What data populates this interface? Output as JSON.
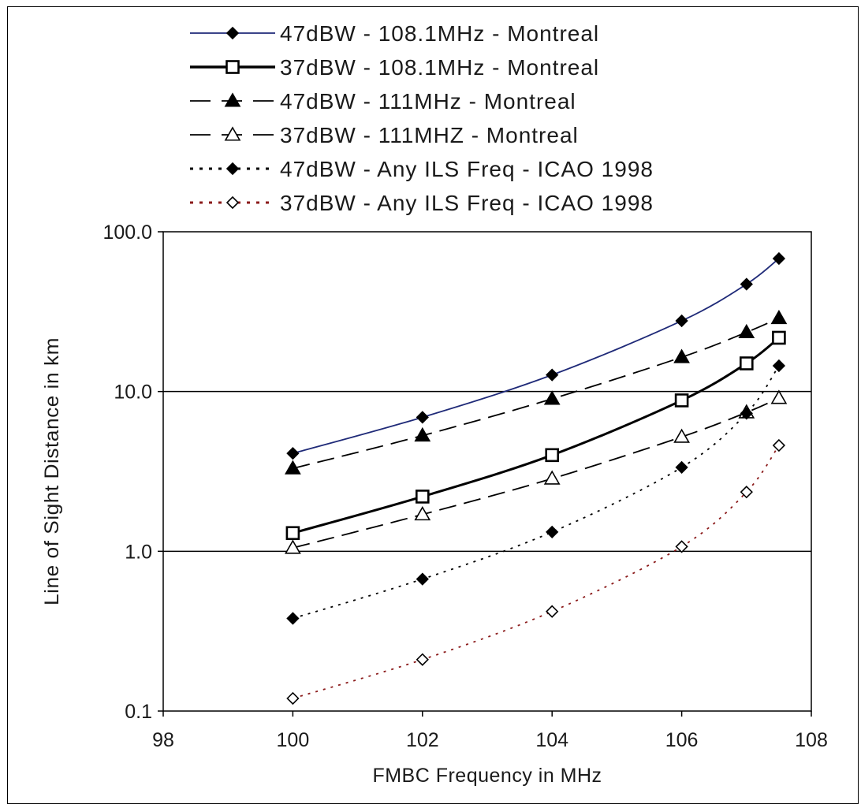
{
  "chart_data": {
    "type": "line",
    "title": "",
    "xlabel": "FMBC Frequency in MHz",
    "ylabel": "Line of Sight Distance in km",
    "xlim": [
      98,
      108
    ],
    "ylim": [
      0.1,
      100
    ],
    "yscale": "log",
    "x_ticks": [
      98,
      100,
      102,
      104,
      106,
      108
    ],
    "x_tick_labels": [
      "98",
      "100",
      "102",
      "104",
      "106",
      "108"
    ],
    "y_ticks": [
      0.1,
      1,
      10,
      100
    ],
    "y_tick_labels": [
      "0.1",
      "1.0",
      "10.0",
      "100.0"
    ],
    "grid": "horizontal major lines",
    "legend_position": "top",
    "series": [
      {
        "name": "47dBW - 108.1MHz - Montreal",
        "color": "#1f2a78",
        "dash": "solid",
        "line_weight": "thin",
        "marker": "diamond-filled",
        "x": [
          100,
          102,
          104,
          106,
          107,
          107.5
        ],
        "y": [
          4.1,
          6.9,
          12.7,
          27.7,
          47,
          68
        ]
      },
      {
        "name": "37dBW - 108.1MHz - Montreal",
        "color": "#000000",
        "dash": "solid",
        "line_weight": "medium",
        "marker": "square-open",
        "x": [
          100,
          102,
          104,
          106,
          107,
          107.5
        ],
        "y": [
          1.3,
          2.2,
          4.0,
          8.8,
          15.0,
          21.7
        ]
      },
      {
        "name": "47dBW - 111MHz - Montreal",
        "color": "#000000",
        "dash": "long-dash",
        "line_weight": "thin",
        "marker": "triangle-filled",
        "x": [
          100,
          102,
          104,
          106,
          107,
          107.5
        ],
        "y": [
          3.3,
          5.3,
          9.0,
          16.4,
          23.5,
          28.8
        ]
      },
      {
        "name": "37dBW - 111MHZ - Montreal",
        "color": "#000000",
        "dash": "long-dash",
        "line_weight": "thin",
        "marker": "triangle-open",
        "x": [
          100,
          102,
          104,
          106,
          107,
          107.5
        ],
        "y": [
          1.05,
          1.7,
          2.85,
          5.2,
          7.4,
          9.1
        ]
      },
      {
        "name": "47dBW - Any ILS Freq - ICAO 1998",
        "color": "#000000",
        "dash": "dotted",
        "line_weight": "thin",
        "marker": "diamond-filled",
        "x": [
          100,
          102,
          104,
          106,
          107,
          107.5
        ],
        "y": [
          0.38,
          0.67,
          1.32,
          3.35,
          7.3,
          14.5
        ]
      },
      {
        "name": "37dBW - Any ILS Freq - ICAO 1998",
        "color": "#8b1a1a",
        "dash": "dotted",
        "line_weight": "thin",
        "marker": "diamond-open",
        "x": [
          100,
          102,
          104,
          106,
          107,
          107.5
        ],
        "y": [
          0.12,
          0.21,
          0.42,
          1.07,
          2.35,
          4.6
        ]
      }
    ]
  }
}
